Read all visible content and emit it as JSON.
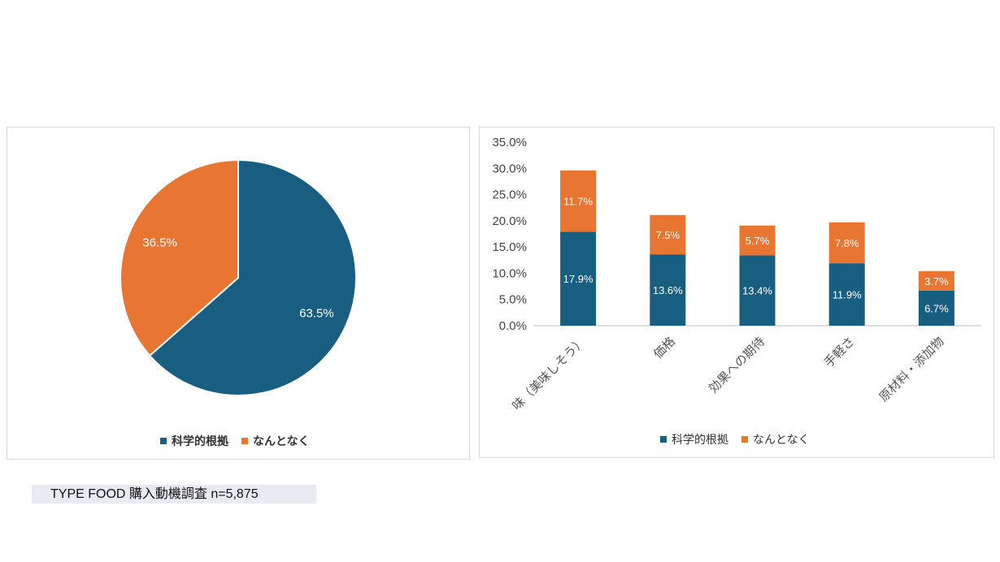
{
  "colors": {
    "series1": "#175e80",
    "series2": "#e87632"
  },
  "chart_data": [
    {
      "type": "pie",
      "categories": [
        "科学的根拠",
        "なんとなく"
      ],
      "values": [
        63.5,
        36.5
      ],
      "labels": [
        "63.5%",
        "36.5%"
      ],
      "legend": [
        "科学的根拠",
        "なんとなく"
      ],
      "legend_position": "bottom"
    },
    {
      "type": "bar",
      "stacked": true,
      "categories": [
        "味（美味しそう）",
        "価格",
        "効果への期待",
        "手軽さ",
        "原材料・添加物"
      ],
      "series": [
        {
          "name": "科学的根拠",
          "values": [
            17.9,
            13.6,
            13.4,
            11.9,
            6.7
          ],
          "labels": [
            "17.9%",
            "13.6%",
            "13.4%",
            "11.9%",
            "6.7%"
          ]
        },
        {
          "name": "なんとなく",
          "values": [
            11.7,
            7.5,
            5.7,
            7.8,
            3.7
          ],
          "labels": [
            "11.7%",
            "7.5%",
            "5.7%",
            "7.8%",
            "3.7%"
          ]
        }
      ],
      "ylim": [
        0,
        35
      ],
      "yticks": [
        "0.0%",
        "5.0%",
        "10.0%",
        "15.0%",
        "20.0%",
        "25.0%",
        "30.0%",
        "35.0%"
      ],
      "grid": false,
      "legend_position": "bottom"
    }
  ],
  "source_note": "TYPE FOOD 購入動機調査 n=5,875"
}
